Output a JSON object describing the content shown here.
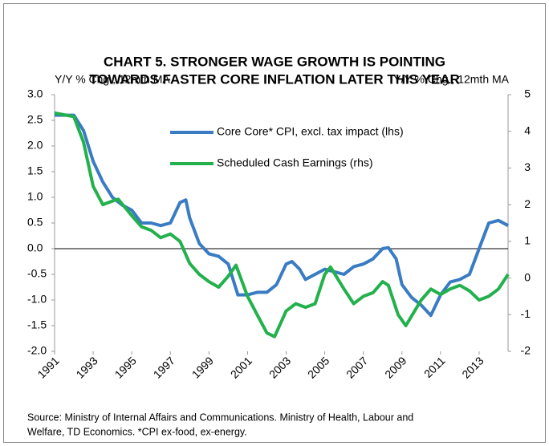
{
  "chart_data": {
    "type": "line",
    "title": [
      "CHART 5. STRONGER WAGE GROWTH IS POINTING",
      "TOWARDS FASTER CORE INFLATION LATER THIS YEAR"
    ],
    "y_label": "Y/Y % Chg., 12mth MA",
    "y2_label": "Y/Y % Chg., 12mth MA",
    "source": [
      "Source: Ministry of Internal Affairs and Communications. Ministry of Health, Labour and",
      "Welfare, TD Economics. *CPI ex-food, ex-energy."
    ],
    "xlim": [
      1991,
      2014.5
    ],
    "xticks": [
      1991,
      1993,
      1995,
      1997,
      1999,
      2001,
      2003,
      2005,
      2007,
      2009,
      2011,
      2013
    ],
    "ylim": [
      -2,
      3
    ],
    "yticks": [
      {
        "value": 3,
        "label": "3.0"
      },
      2.5,
      {
        "value": 2,
        "label": "2.0"
      },
      1.5,
      {
        "value": 1,
        "label": "1.0"
      },
      0.5,
      {
        "value": 0,
        "label": "0.0"
      },
      -0.5,
      {
        "value": -1,
        "label": "-1.0"
      },
      -1.5,
      {
        "value": -2,
        "label": "-2.0"
      }
    ],
    "y2lim": [
      -2,
      5
    ],
    "y2ticks": [
      5,
      4,
      3,
      2,
      1,
      0,
      -1,
      -2
    ],
    "series": [
      {
        "name": "Core Core* CPI, excl. tax impact (lhs)",
        "color": "#3a7cc3",
        "axis": "y",
        "x": [
          1991,
          1991.5,
          1992,
          1992.5,
          1993,
          1993.5,
          1994,
          1994.5,
          1995,
          1995.5,
          1996,
          1996.5,
          1997,
          1997.5,
          1997.8,
          1998,
          1998.5,
          1999,
          1999.5,
          2000,
          2000.5,
          2001,
          2001.5,
          2002,
          2002.5,
          2003,
          2003.3,
          2003.7,
          2004,
          2004.5,
          2005,
          2005.5,
          2006,
          2006.5,
          2007,
          2007.5,
          2008,
          2008.3,
          2008.7,
          2009,
          2009.5,
          2010,
          2010.5,
          2011,
          2011.5,
          2012,
          2012.5,
          2013,
          2013.5,
          2014,
          2014.5
        ],
        "values": [
          2.6,
          2.6,
          2.6,
          2.3,
          1.7,
          1.3,
          1.0,
          0.85,
          0.75,
          0.5,
          0.5,
          0.45,
          0.5,
          0.9,
          0.95,
          0.6,
          0.1,
          -0.1,
          -0.15,
          -0.3,
          -0.9,
          -0.9,
          -0.85,
          -0.85,
          -0.7,
          -0.3,
          -0.25,
          -0.4,
          -0.6,
          -0.5,
          -0.4,
          -0.45,
          -0.5,
          -0.35,
          -0.3,
          -0.2,
          0.0,
          0.02,
          -0.2,
          -0.7,
          -0.95,
          -1.1,
          -1.3,
          -0.9,
          -0.65,
          -0.6,
          -0.5,
          0.0,
          0.5,
          0.55,
          0.45
        ]
      },
      {
        "name": "Scheduled Cash Earnings (rhs)",
        "color": "#22b14c",
        "axis": "y2",
        "x": [
          1991,
          1992,
          1992.5,
          1993,
          1993.5,
          1994,
          1994.3,
          1995,
          1995.5,
          1996,
          1996.5,
          1997,
          1997.5,
          1998,
          1998.5,
          1999,
          1999.5,
          2000,
          2000.4,
          2001,
          2001.5,
          2002,
          2002.4,
          2003,
          2003.5,
          2004,
          2004.5,
          2005,
          2005.3,
          2006,
          2006.5,
          2007,
          2007.5,
          2008,
          2008.3,
          2008.8,
          2009.2,
          2010,
          2010.5,
          2011,
          2011.5,
          2012,
          2012.5,
          2013,
          2013.5,
          2014,
          2014.5
        ],
        "values": [
          4.5,
          4.4,
          3.7,
          2.5,
          2.0,
          2.1,
          2.15,
          1.7,
          1.4,
          1.3,
          1.1,
          1.2,
          1.0,
          0.4,
          0.1,
          -0.1,
          -0.25,
          0.05,
          0.35,
          -0.5,
          -1.0,
          -1.5,
          -1.6,
          -0.9,
          -0.7,
          -0.8,
          -0.7,
          0.1,
          0.3,
          -0.3,
          -0.7,
          -0.5,
          -0.4,
          -0.1,
          -0.2,
          -1.0,
          -1.3,
          -0.6,
          -0.3,
          -0.45,
          -0.3,
          -0.2,
          -0.35,
          -0.6,
          -0.5,
          -0.3,
          0.1
        ]
      }
    ]
  }
}
